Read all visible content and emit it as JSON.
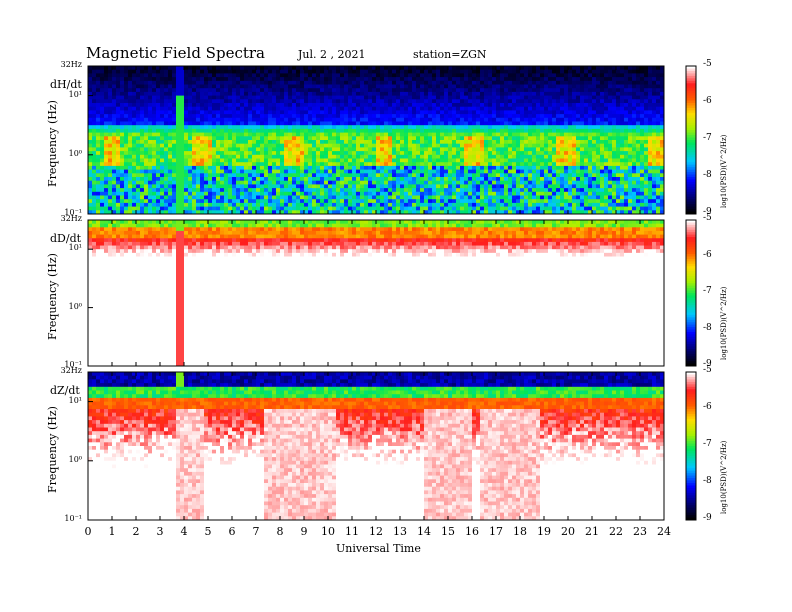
{
  "header": {
    "title": "Magnetic  Field  Spectra",
    "date": "Jul.  2  , 2021",
    "station": "station=ZGN"
  },
  "colors": {
    "colormap": [
      "#ffffff",
      "#ff2a2a",
      "#ff7f00",
      "#ffff00",
      "#00e000",
      "#00ffff",
      "#0000ff",
      "#000060",
      "#000000"
    ],
    "axis": "#000000"
  },
  "chart_data": [
    {
      "type": "heatmap",
      "panel_label": "dH/dt",
      "ylabel": "Frequency  (Hz)",
      "ytick_labels": [
        "32Hz",
        "10¹",
        "10⁰",
        "10⁻¹"
      ],
      "colorbar": {
        "label": "log10(PSD)(V^2/Hz)",
        "range": [
          -9,
          -5
        ],
        "ticks": [
          "-5",
          "-6",
          "-7",
          "-8",
          "-9"
        ]
      },
      "profile": "dH"
    },
    {
      "type": "heatmap",
      "panel_label": "dD/dt",
      "ylabel": "Frequency  (Hz)",
      "ytick_labels": [
        "32Hz",
        "10¹",
        "10⁰",
        "10⁻¹"
      ],
      "colorbar": {
        "label": "log10(PSD)(V^2/Hz)",
        "range": [
          -9,
          -5
        ],
        "ticks": [
          "-5",
          "-6",
          "-7",
          "-8",
          "-9"
        ]
      },
      "profile": "dD"
    },
    {
      "type": "heatmap",
      "panel_label": "dZ/dt",
      "ylabel": "Frequency  (Hz)",
      "ytick_labels": [
        "32Hz",
        "10¹",
        "10⁰",
        "10⁻¹"
      ],
      "colorbar": {
        "label": "log10(PSD)(V^2/Hz)",
        "range": [
          -9,
          -5
        ],
        "ticks": [
          "-5",
          "-6",
          "-7",
          "-8",
          "-9"
        ]
      },
      "profile": "dZ"
    }
  ],
  "x_axis": {
    "label": "Universal  Time",
    "range": [
      0,
      24
    ],
    "ticks": [
      "0",
      "1",
      "2",
      "3",
      "4",
      "5",
      "6",
      "7",
      "8",
      "9",
      "10",
      "11",
      "12",
      "13",
      "14",
      "15",
      "16",
      "17",
      "18",
      "19",
      "20",
      "21",
      "22",
      "23",
      "24"
    ]
  }
}
